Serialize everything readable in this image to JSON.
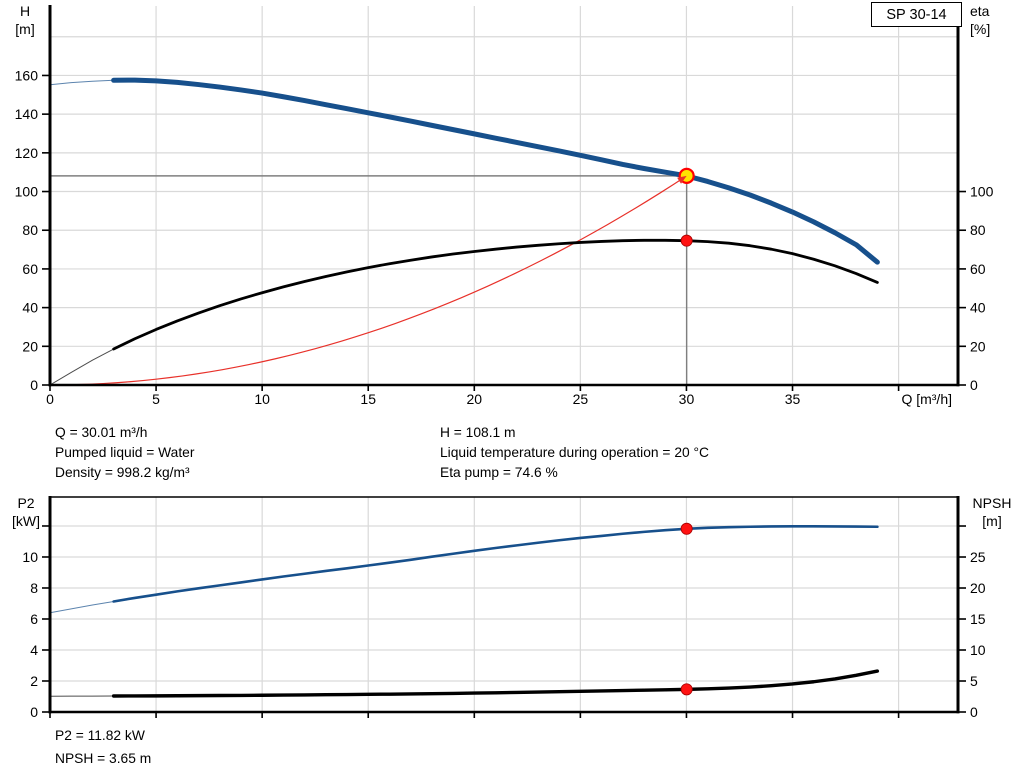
{
  "header": {
    "pump_model": "SP 30-14"
  },
  "colors": {
    "curve_blue": "#17508c",
    "curve_black": "#000000",
    "system_red": "#e8312a",
    "grid": "#d9d9d9",
    "op_line": "#7f7f7f",
    "dot_red": "#ff1212",
    "dot_red_edge": "#a80000",
    "dot_yellow": "#ffe400",
    "axis": "#000000"
  },
  "annotations_top": {
    "left": [
      "Q = 30.01 m³/h",
      "Pumped liquid = Water",
      "Density = 998.2 kg/m³"
    ],
    "right": [
      "H = 108.1 m",
      "Liquid temperature during operation = 20 °C",
      "Eta pump = 74.6 %"
    ]
  },
  "annotations_bottom": [
    "P2 = 11.82 kW",
    "NPSH = 3.65 m"
  ],
  "chart_data": [
    {
      "type": "line",
      "name": "hq-eta-chart",
      "title": "SP 30-14 pump curve",
      "xlabel": "Q [m³/h]",
      "xlim": [
        0,
        42.8
      ],
      "grid": true,
      "x_ticks": [
        0,
        5,
        10,
        15,
        20,
        25,
        30,
        35,
        40
      ],
      "x_tick_labels": [
        "0",
        "5",
        "10",
        "15",
        "20",
        "25",
        "30",
        "35",
        ""
      ],
      "left_axis": {
        "line1": "H",
        "line2": "[m]",
        "ticks": [
          0,
          20,
          40,
          60,
          80,
          100,
          120,
          140,
          160
        ],
        "tick_labels": [
          "0",
          "20",
          "40",
          "60",
          "80",
          "100",
          "120",
          "140",
          "160"
        ],
        "grid_values": [
          20,
          40,
          60,
          80,
          100,
          120,
          140,
          160,
          180
        ],
        "range": [
          0,
          195.9
        ]
      },
      "right_axis": {
        "line1": "eta",
        "line2": "[%]",
        "ticks": [
          0,
          20,
          40,
          60,
          80,
          100
        ],
        "tick_labels": [
          "0",
          "20",
          "40",
          "60",
          "80",
          "100"
        ],
        "range": [
          0,
          195.9
        ]
      },
      "x_values": [
        0,
        1,
        2,
        3,
        4,
        5,
        6,
        7,
        8,
        9,
        10,
        11,
        12,
        13,
        14,
        15,
        16,
        17,
        18,
        19,
        20,
        21,
        22,
        23,
        24,
        25,
        26,
        27,
        28,
        29,
        30,
        31,
        32,
        33,
        34,
        35,
        36,
        37,
        38,
        39
      ],
      "series": [
        {
          "name": "H",
          "axis": "left",
          "color": "#17508c",
          "width": 5,
          "thin_lead_until": 3,
          "values": [
            155.2,
            156.3,
            157.0,
            157.5,
            157.6,
            157.2,
            156.4,
            155.3,
            154.0,
            152.5,
            150.9,
            149.0,
            147.0,
            144.9,
            142.8,
            140.7,
            138.6,
            136.4,
            134.2,
            132.0,
            129.8,
            127.6,
            125.4,
            123.2,
            121.0,
            118.7,
            116.4,
            114.0,
            111.9,
            110.0,
            108.1,
            105.2,
            101.9,
            98.2,
            94.0,
            89.4,
            84.3,
            78.7,
            72.5,
            63.5
          ]
        },
        {
          "name": "eta",
          "axis": "right",
          "color": "#000000",
          "width": 2.8,
          "thin_lead_until": 3,
          "values": [
            0,
            6.5,
            12.8,
            18.6,
            23.9,
            28.7,
            33.1,
            37.2,
            41.0,
            44.5,
            47.7,
            50.7,
            53.5,
            56.1,
            58.5,
            60.7,
            62.7,
            64.5,
            66.2,
            67.7,
            69.0,
            70.2,
            71.3,
            72.2,
            73.0,
            73.7,
            74.2,
            74.6,
            74.8,
            74.8,
            74.6,
            74.1,
            73.3,
            72.0,
            70.2,
            67.9,
            65.0,
            61.6,
            57.6,
            53.0
          ]
        }
      ],
      "system_curve": {
        "q_end": 30.01,
        "h_end": 108.1
      },
      "operating_point": {
        "q": 30.01,
        "left_value": 108.1,
        "right_value": 74.6,
        "show_lines": true,
        "duty_marker": true
      }
    },
    {
      "type": "line",
      "name": "p2-npsh-chart",
      "title": "Power and NPSH curve",
      "xlabel": "",
      "xlim": [
        0,
        42.8
      ],
      "grid": true,
      "x_ticks": [
        0,
        5,
        10,
        15,
        20,
        25,
        30,
        35,
        40
      ],
      "x_tick_labels": [
        "",
        "",
        "",
        "",
        "",
        "",
        "",
        "",
        ""
      ],
      "left_axis": {
        "line1": "P2",
        "line2": "[kW]",
        "ticks": [
          0,
          2,
          4,
          6,
          8,
          10,
          12
        ],
        "tick_labels": [
          "0",
          "2",
          "4",
          "6",
          "8",
          "10",
          ""
        ],
        "grid_values": [
          2,
          4,
          6,
          8,
          10,
          12
        ],
        "range": [
          0,
          13.87
        ]
      },
      "right_axis": {
        "line1": "NPSH",
        "line2": "[m]",
        "ticks": [
          0,
          5,
          10,
          15,
          20,
          25,
          30
        ],
        "tick_labels": [
          "0",
          "5",
          "10",
          "15",
          "20",
          "25",
          ""
        ],
        "range": [
          0,
          34.68
        ]
      },
      "x_values": [
        0,
        1,
        2,
        3,
        4,
        5,
        6,
        7,
        8,
        9,
        10,
        11,
        12,
        13,
        14,
        15,
        16,
        17,
        18,
        19,
        20,
        21,
        22,
        23,
        24,
        25,
        26,
        27,
        28,
        29,
        30,
        31,
        32,
        33,
        34,
        35,
        36,
        37,
        38,
        39
      ],
      "series": [
        {
          "name": "P2",
          "axis": "left",
          "color": "#17508c",
          "width": 2.6,
          "thin_lead_until": 3,
          "values": [
            6.4,
            6.65,
            6.9,
            7.13,
            7.36,
            7.57,
            7.78,
            7.98,
            8.17,
            8.36,
            8.55,
            8.74,
            8.92,
            9.1,
            9.27,
            9.45,
            9.63,
            9.82,
            10.02,
            10.21,
            10.4,
            10.58,
            10.75,
            10.92,
            11.08,
            11.23,
            11.36,
            11.5,
            11.62,
            11.73,
            11.82,
            11.88,
            11.92,
            11.95,
            11.97,
            11.98,
            11.98,
            11.97,
            11.96,
            11.95
          ]
        },
        {
          "name": "NPSH",
          "axis": "right",
          "color": "#000000",
          "width": 3.4,
          "thin_lead_until": 3,
          "values": [
            2.55,
            2.56,
            2.57,
            2.58,
            2.59,
            2.6,
            2.62,
            2.64,
            2.66,
            2.68,
            2.7,
            2.73,
            2.76,
            2.79,
            2.82,
            2.85,
            2.88,
            2.92,
            2.96,
            3.0,
            3.05,
            3.1,
            3.15,
            3.21,
            3.27,
            3.34,
            3.4,
            3.46,
            3.52,
            3.58,
            3.65,
            3.74,
            3.86,
            4.02,
            4.24,
            4.52,
            4.88,
            5.34,
            5.92,
            6.6
          ]
        }
      ],
      "operating_point": {
        "q": 30.01,
        "left_value": 11.82,
        "right_value": 3.65,
        "show_lines": false,
        "duty_marker": false
      }
    }
  ]
}
